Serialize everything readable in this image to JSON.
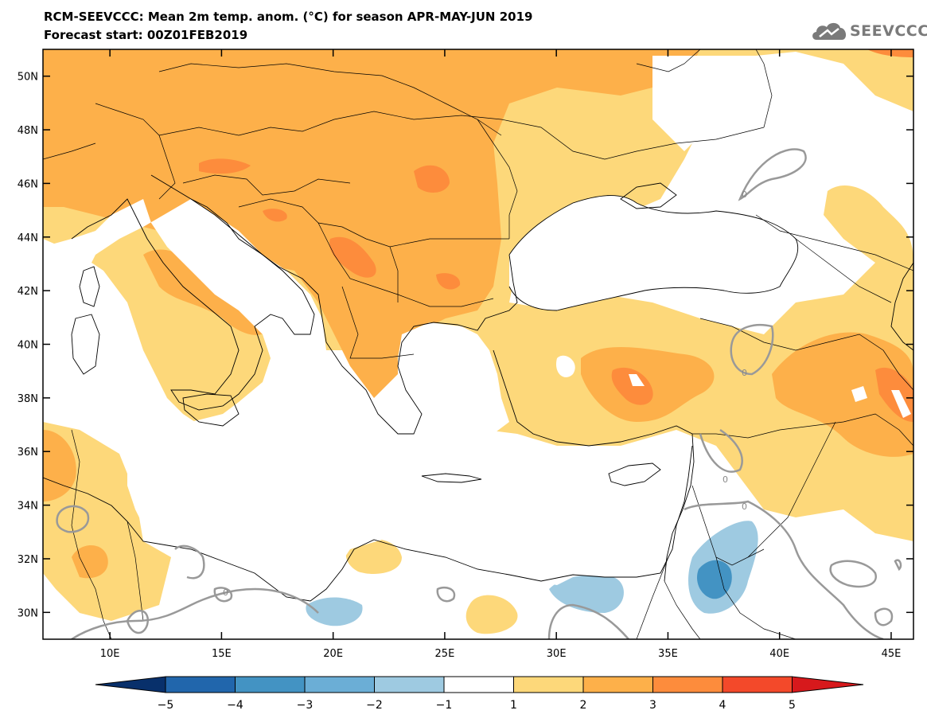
{
  "header": {
    "title_line1": "RCM-SEEVCCC: Mean 2m temp. anom. (°C) for season APR-MAY-JUN 2019",
    "title_line2": "Forecast start: 00Z01FEB2019",
    "logo_text": "SEEVCCC"
  },
  "map": {
    "lon_range": [
      7,
      46
    ],
    "lat_range": [
      29,
      51
    ],
    "x_ticks": [
      {
        "value": 10,
        "label": "10E"
      },
      {
        "value": 15,
        "label": "15E"
      },
      {
        "value": 20,
        "label": "20E"
      },
      {
        "value": 25,
        "label": "25E"
      },
      {
        "value": 30,
        "label": "30E"
      },
      {
        "value": 35,
        "label": "35E"
      },
      {
        "value": 40,
        "label": "40E"
      },
      {
        "value": 45,
        "label": "45E"
      }
    ],
    "y_ticks": [
      {
        "value": 30,
        "label": "30N"
      },
      {
        "value": 32,
        "label": "32N"
      },
      {
        "value": 34,
        "label": "34N"
      },
      {
        "value": 36,
        "label": "36N"
      },
      {
        "value": 38,
        "label": "38N"
      },
      {
        "value": 40,
        "label": "40N"
      },
      {
        "value": 42,
        "label": "42N"
      },
      {
        "value": 44,
        "label": "44N"
      },
      {
        "value": 46,
        "label": "46N"
      },
      {
        "value": 48,
        "label": "48N"
      },
      {
        "value": 50,
        "label": "50N"
      }
    ],
    "zero_contour_label": "0"
  },
  "colorbar": {
    "labels": [
      "−5",
      "−4",
      "−3",
      "−2",
      "−1",
      "1",
      "2",
      "3",
      "4",
      "5"
    ],
    "colors": {
      "lt_m5": "#08306b",
      "m5_m4": "#2166ac",
      "m4_m3": "#4393c3",
      "m3_m2": "#6baed6",
      "m2_m1": "#9ecae1",
      "m1_1": "#ffffff",
      "1_2": "#fdd87a",
      "2_3": "#fdb04a",
      "3_4": "#fd8c3c",
      "4_5": "#f3492a",
      "gt_5": "#d7191c"
    }
  }
}
